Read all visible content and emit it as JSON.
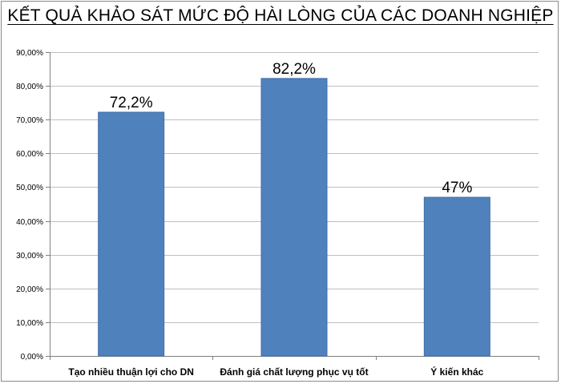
{
  "colors": {
    "bar": "#4f81bd",
    "bar_stroke": "#3f6fa6",
    "grid": "#bfbfbf",
    "axis": "#808080"
  },
  "chart_data": {
    "type": "bar",
    "title": "KẾT QUẢ KHẢO SÁT MỨC ĐỘ HÀI LÒNG CỦA CÁC DOANH NGHIỆP",
    "xlabel": "",
    "ylabel": "",
    "categories": [
      "Tạo nhiều thuận lợi cho DN",
      "Đánh giá chất lượng phục vụ tốt",
      "Ý kiến khác"
    ],
    "values": [
      72.2,
      82.2,
      47
    ],
    "data_labels": [
      "72,2%",
      "82,2%",
      "47%"
    ],
    "ylim": [
      0,
      90
    ],
    "yticks": [
      0,
      10,
      20,
      30,
      40,
      50,
      60,
      70,
      80,
      90
    ],
    "ytick_labels": [
      "0,00%",
      "10,00%",
      "20,00%",
      "30,00%",
      "40,00%",
      "50,00%",
      "60,00%",
      "70,00%",
      "80,00%",
      "90,00%"
    ],
    "grid": true,
    "legend": "none"
  }
}
